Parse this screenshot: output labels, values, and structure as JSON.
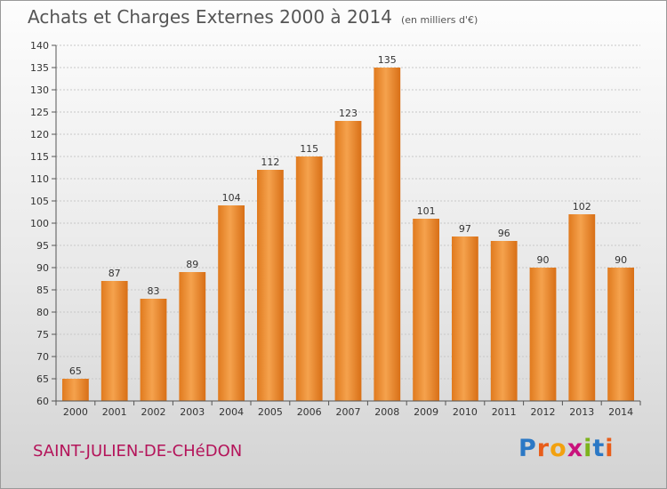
{
  "header": {
    "title": "Achats et Charges Externes 2000 à 2014",
    "subtitle": "(en milliers d'€)"
  },
  "footer": {
    "commune": "SAINT-JULIEN-DE-CHéDON",
    "logo_letters": [
      "P",
      "r",
      "o",
      "x",
      "i",
      "t",
      "i"
    ],
    "logo_colors": [
      "#2b78c5",
      "#e85d1a",
      "#f2a10f",
      "#c9127c",
      "#7db31c",
      "#2b78c5",
      "#e85d1a"
    ]
  },
  "chart_data": {
    "type": "bar",
    "categories": [
      "2000",
      "2001",
      "2002",
      "2003",
      "2004",
      "2005",
      "2006",
      "2007",
      "2008",
      "2009",
      "2010",
      "2011",
      "2012",
      "2013",
      "2014"
    ],
    "values": [
      65,
      87,
      83,
      89,
      104,
      112,
      115,
      123,
      135,
      101,
      97,
      96,
      90,
      102,
      90
    ],
    "ylim": [
      60,
      140
    ],
    "yticks": [
      60,
      65,
      70,
      75,
      80,
      85,
      90,
      95,
      100,
      105,
      110,
      115,
      120,
      125,
      130,
      135,
      140
    ],
    "bar_color": "#f09a3e",
    "grid": "horizontal dotted",
    "legend": "none"
  }
}
